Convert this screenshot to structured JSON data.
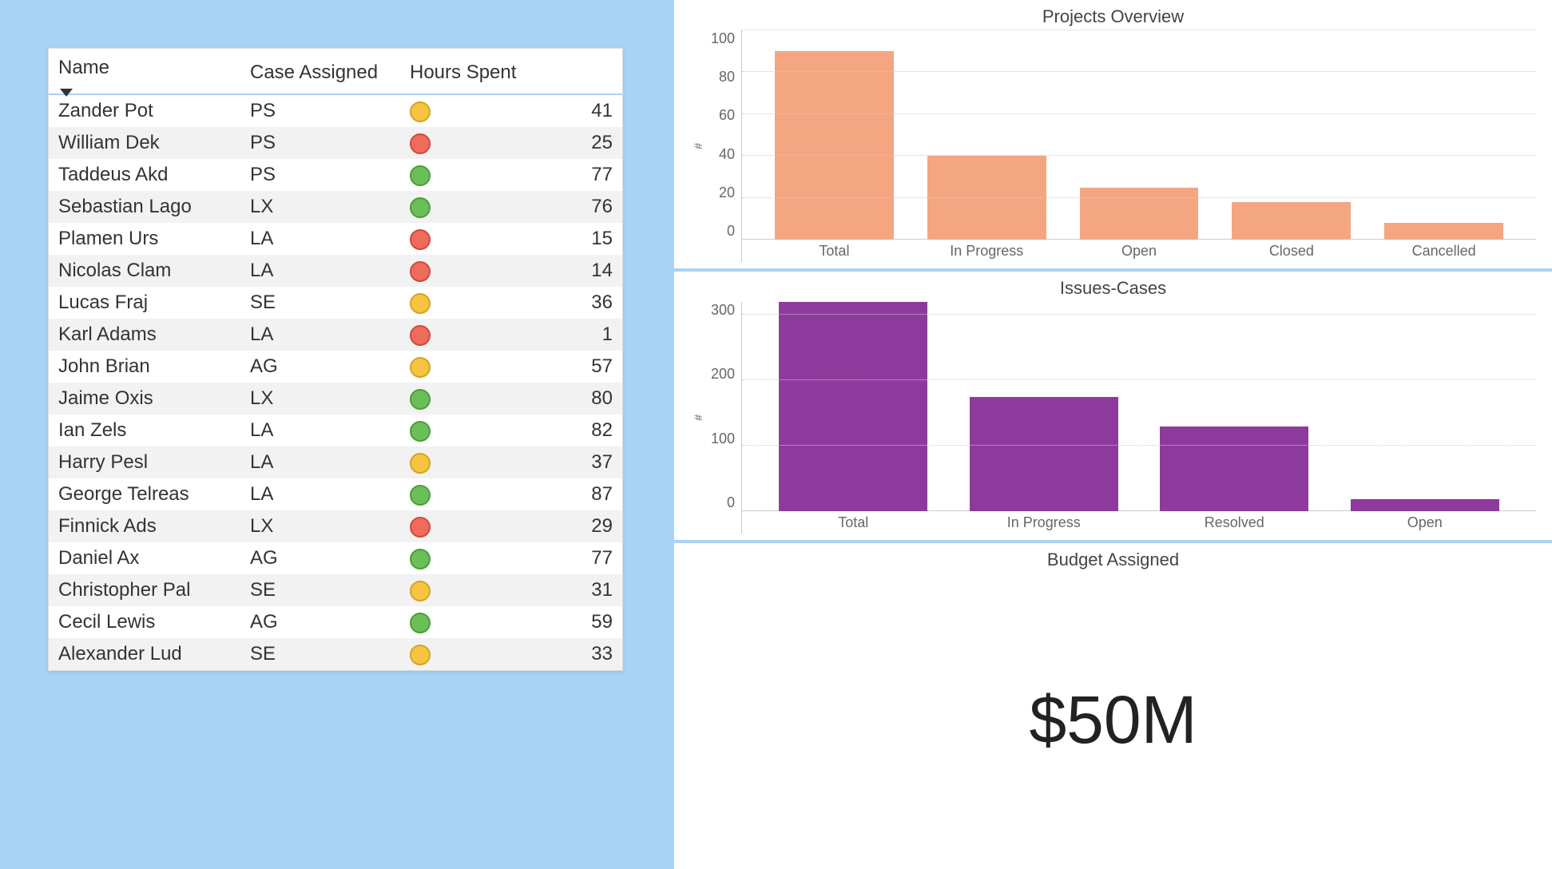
{
  "table": {
    "columns": [
      "Name",
      "Case Assigned",
      "Hours Spent"
    ],
    "sorted_column_index": 0,
    "status_colors": {
      "green": {
        "fill": "#6bbf59",
        "border": "#4a9e3a"
      },
      "yellow": {
        "fill": "#f5c542",
        "border": "#d4a420"
      },
      "red": {
        "fill": "#ef6b5b",
        "border": "#d14a3a"
      }
    },
    "rows": [
      {
        "name": "Zander Pot",
        "case": "PS",
        "status": "yellow",
        "hours": 41
      },
      {
        "name": "William Dek",
        "case": "PS",
        "status": "red",
        "hours": 25
      },
      {
        "name": "Taddeus Akd",
        "case": "PS",
        "status": "green",
        "hours": 77
      },
      {
        "name": "Sebastian Lago",
        "case": "LX",
        "status": "green",
        "hours": 76
      },
      {
        "name": "Plamen Urs",
        "case": "LA",
        "status": "red",
        "hours": 15
      },
      {
        "name": "Nicolas Clam",
        "case": "LA",
        "status": "red",
        "hours": 14
      },
      {
        "name": "Lucas Fraj",
        "case": "SE",
        "status": "yellow",
        "hours": 36
      },
      {
        "name": "Karl Adams",
        "case": "LA",
        "status": "red",
        "hours": 1
      },
      {
        "name": "John Brian",
        "case": "AG",
        "status": "yellow",
        "hours": 57
      },
      {
        "name": "Jaime Oxis",
        "case": "LX",
        "status": "green",
        "hours": 80
      },
      {
        "name": "Ian Zels",
        "case": "LA",
        "status": "green",
        "hours": 82
      },
      {
        "name": "Harry Pesl",
        "case": "LA",
        "status": "yellow",
        "hours": 37
      },
      {
        "name": "George Telreas",
        "case": "LA",
        "status": "green",
        "hours": 87
      },
      {
        "name": "Finnick Ads",
        "case": "LX",
        "status": "red",
        "hours": 29
      },
      {
        "name": "Daniel Ax",
        "case": "AG",
        "status": "green",
        "hours": 77
      },
      {
        "name": "Christopher Pal",
        "case": "SE",
        "status": "yellow",
        "hours": 31
      },
      {
        "name": "Cecil Lewis",
        "case": "AG",
        "status": "green",
        "hours": 59
      },
      {
        "name": "Alexander Lud",
        "case": "SE",
        "status": "yellow",
        "hours": 33
      }
    ]
  },
  "projects_chart": {
    "title": "Projects Overview",
    "type": "bar",
    "y_label": "#",
    "y_max": 100,
    "y_ticks": [
      100,
      80,
      60,
      40,
      20,
      0
    ],
    "bar_color": "#f4a582",
    "grid_color": "#cccccc",
    "categories": [
      "Total",
      "In Progress",
      "Open",
      "Closed",
      "Cancelled"
    ],
    "values": [
      90,
      40,
      25,
      18,
      8
    ]
  },
  "issues_chart": {
    "title": "Issues-Cases",
    "type": "bar",
    "y_label": "#",
    "y_max": 320,
    "y_ticks": [
      300,
      200,
      100,
      0
    ],
    "bar_color": "#8e3a9d",
    "grid_color": "#cccccc",
    "categories": [
      "Total",
      "In Progress",
      "Resolved",
      "Open"
    ],
    "values": [
      320,
      175,
      130,
      18
    ]
  },
  "budget": {
    "title": "Budget Assigned",
    "value": "$50M"
  }
}
